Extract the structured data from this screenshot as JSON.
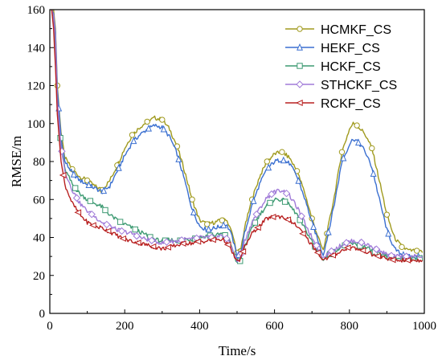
{
  "chart_data": {
    "type": "line",
    "title": "",
    "xlabel": "Time/s",
    "ylabel": "RMSE/m",
    "xlim": [
      0,
      1000
    ],
    "ylim": [
      0,
      160
    ],
    "xticks": [
      0,
      200,
      400,
      600,
      800,
      1000
    ],
    "yticks": [
      0,
      20,
      40,
      60,
      80,
      100,
      120,
      140,
      160
    ],
    "grid": false,
    "legend_position": "top-right",
    "series": [
      {
        "name": "HCMKF_CS",
        "color": "#a09a1e",
        "marker": "circle",
        "points": [
          [
            5,
            160
          ],
          [
            10,
            160
          ],
          [
            15,
            150
          ],
          [
            20,
            120
          ],
          [
            30,
            95
          ],
          [
            40,
            82
          ],
          [
            60,
            76
          ],
          [
            80,
            72
          ],
          [
            100,
            70
          ],
          [
            120,
            67
          ],
          [
            140,
            65
          ],
          [
            160,
            70
          ],
          [
            180,
            78
          ],
          [
            200,
            87
          ],
          [
            220,
            94
          ],
          [
            240,
            98
          ],
          [
            260,
            101
          ],
          [
            280,
            103
          ],
          [
            300,
            102
          ],
          [
            320,
            97
          ],
          [
            340,
            88
          ],
          [
            360,
            75
          ],
          [
            380,
            60
          ],
          [
            400,
            49
          ],
          [
            420,
            47
          ],
          [
            440,
            48
          ],
          [
            460,
            49
          ],
          [
            470,
            50
          ],
          [
            480,
            46
          ],
          [
            490,
            40
          ],
          [
            500,
            32
          ],
          [
            510,
            34
          ],
          [
            520,
            45
          ],
          [
            540,
            60
          ],
          [
            560,
            72
          ],
          [
            580,
            80
          ],
          [
            600,
            84
          ],
          [
            620,
            85
          ],
          [
            640,
            82
          ],
          [
            660,
            75
          ],
          [
            680,
            64
          ],
          [
            700,
            50
          ],
          [
            720,
            38
          ],
          [
            730,
            33
          ],
          [
            740,
            42
          ],
          [
            760,
            62
          ],
          [
            780,
            85
          ],
          [
            800,
            97
          ],
          [
            810,
            100
          ],
          [
            820,
            99
          ],
          [
            840,
            95
          ],
          [
            860,
            87
          ],
          [
            880,
            70
          ],
          [
            900,
            52
          ],
          [
            920,
            40
          ],
          [
            940,
            35
          ],
          [
            960,
            33
          ],
          [
            980,
            33
          ],
          [
            995,
            32
          ]
        ]
      },
      {
        "name": "HEKF_CS",
        "color": "#3a6fd0",
        "marker": "triangle",
        "points": [
          [
            5,
            160
          ],
          [
            10,
            158
          ],
          [
            15,
            148
          ],
          [
            20,
            118
          ],
          [
            30,
            93
          ],
          [
            40,
            80
          ],
          [
            60,
            74
          ],
          [
            80,
            70
          ],
          [
            100,
            68
          ],
          [
            120,
            66
          ],
          [
            140,
            64
          ],
          [
            160,
            67
          ],
          [
            180,
            75
          ],
          [
            200,
            83
          ],
          [
            220,
            90
          ],
          [
            240,
            94
          ],
          [
            260,
            97
          ],
          [
            280,
            99
          ],
          [
            300,
            98
          ],
          [
            320,
            93
          ],
          [
            340,
            84
          ],
          [
            360,
            70
          ],
          [
            380,
            55
          ],
          [
            400,
            46
          ],
          [
            420,
            44
          ],
          [
            440,
            45
          ],
          [
            460,
            46
          ],
          [
            470,
            47
          ],
          [
            480,
            44
          ],
          [
            490,
            38
          ],
          [
            500,
            30
          ],
          [
            510,
            32
          ],
          [
            520,
            42
          ],
          [
            540,
            57
          ],
          [
            560,
            68
          ],
          [
            580,
            76
          ],
          [
            600,
            80
          ],
          [
            620,
            81
          ],
          [
            640,
            79
          ],
          [
            660,
            72
          ],
          [
            680,
            61
          ],
          [
            700,
            48
          ],
          [
            720,
            36
          ],
          [
            730,
            31
          ],
          [
            740,
            39
          ],
          [
            760,
            58
          ],
          [
            780,
            80
          ],
          [
            800,
            89
          ],
          [
            810,
            92
          ],
          [
            820,
            91
          ],
          [
            840,
            86
          ],
          [
            860,
            77
          ],
          [
            880,
            60
          ],
          [
            900,
            44
          ],
          [
            920,
            34
          ],
          [
            940,
            31
          ],
          [
            960,
            30
          ],
          [
            980,
            30
          ],
          [
            995,
            30
          ]
        ]
      },
      {
        "name": "HCKF_CS",
        "color": "#3d9a72",
        "marker": "square",
        "points": [
          [
            5,
            160
          ],
          [
            10,
            156
          ],
          [
            15,
            140
          ],
          [
            20,
            110
          ],
          [
            30,
            88
          ],
          [
            40,
            76
          ],
          [
            60,
            68
          ],
          [
            80,
            63
          ],
          [
            100,
            60
          ],
          [
            120,
            58
          ],
          [
            140,
            56
          ],
          [
            160,
            52
          ],
          [
            180,
            49
          ],
          [
            200,
            47
          ],
          [
            220,
            45
          ],
          [
            240,
            43
          ],
          [
            260,
            41
          ],
          [
            280,
            39
          ],
          [
            300,
            38
          ],
          [
            320,
            39
          ],
          [
            340,
            38
          ],
          [
            360,
            39
          ],
          [
            380,
            39
          ],
          [
            400,
            40
          ],
          [
            420,
            41
          ],
          [
            440,
            41
          ],
          [
            460,
            42
          ],
          [
            470,
            41
          ],
          [
            480,
            38
          ],
          [
            490,
            33
          ],
          [
            500,
            26
          ],
          [
            510,
            28
          ],
          [
            520,
            35
          ],
          [
            540,
            45
          ],
          [
            560,
            52
          ],
          [
            580,
            57
          ],
          [
            600,
            60
          ],
          [
            620,
            60
          ],
          [
            640,
            57
          ],
          [
            660,
            52
          ],
          [
            680,
            45
          ],
          [
            700,
            38
          ],
          [
            720,
            31
          ],
          [
            730,
            28
          ],
          [
            740,
            30
          ],
          [
            760,
            33
          ],
          [
            780,
            35
          ],
          [
            800,
            37
          ],
          [
            820,
            36
          ],
          [
            840,
            35
          ],
          [
            860,
            33
          ],
          [
            880,
            31
          ],
          [
            900,
            30
          ],
          [
            920,
            29
          ],
          [
            940,
            29
          ],
          [
            960,
            29
          ],
          [
            980,
            29
          ],
          [
            995,
            29
          ]
        ]
      },
      {
        "name": "STHCKF_CS",
        "color": "#a07ad8",
        "marker": "diamond",
        "points": [
          [
            5,
            160
          ],
          [
            10,
            157
          ],
          [
            15,
            145
          ],
          [
            20,
            112
          ],
          [
            30,
            88
          ],
          [
            40,
            75
          ],
          [
            60,
            65
          ],
          [
            80,
            58
          ],
          [
            100,
            54
          ],
          [
            120,
            51
          ],
          [
            140,
            48
          ],
          [
            160,
            46
          ],
          [
            180,
            44
          ],
          [
            200,
            43
          ],
          [
            220,
            42
          ],
          [
            240,
            40
          ],
          [
            260,
            39
          ],
          [
            280,
            38
          ],
          [
            300,
            37
          ],
          [
            320,
            38
          ],
          [
            340,
            38
          ],
          [
            360,
            39
          ],
          [
            380,
            39
          ],
          [
            400,
            40
          ],
          [
            420,
            40
          ],
          [
            440,
            40
          ],
          [
            460,
            41
          ],
          [
            470,
            40
          ],
          [
            480,
            37
          ],
          [
            490,
            33
          ],
          [
            500,
            27
          ],
          [
            510,
            30
          ],
          [
            520,
            38
          ],
          [
            540,
            48
          ],
          [
            560,
            55
          ],
          [
            580,
            61
          ],
          [
            600,
            64
          ],
          [
            620,
            65
          ],
          [
            640,
            62
          ],
          [
            660,
            56
          ],
          [
            680,
            48
          ],
          [
            700,
            40
          ],
          [
            720,
            33
          ],
          [
            730,
            29
          ],
          [
            740,
            31
          ],
          [
            760,
            34
          ],
          [
            780,
            36
          ],
          [
            800,
            38
          ],
          [
            820,
            38
          ],
          [
            840,
            37
          ],
          [
            860,
            35
          ],
          [
            880,
            33
          ],
          [
            900,
            31
          ],
          [
            920,
            30
          ],
          [
            940,
            30
          ],
          [
            960,
            30
          ],
          [
            980,
            30
          ],
          [
            995,
            30
          ]
        ]
      },
      {
        "name": "RCKF_CS",
        "color": "#b82020",
        "marker": "triangle-left",
        "points": [
          [
            5,
            160
          ],
          [
            10,
            150
          ],
          [
            15,
            130
          ],
          [
            20,
            105
          ],
          [
            30,
            80
          ],
          [
            40,
            68
          ],
          [
            60,
            58
          ],
          [
            80,
            52
          ],
          [
            100,
            48
          ],
          [
            120,
            46
          ],
          [
            140,
            45
          ],
          [
            160,
            43
          ],
          [
            180,
            41
          ],
          [
            200,
            39
          ],
          [
            220,
            38
          ],
          [
            240,
            37
          ],
          [
            260,
            36
          ],
          [
            280,
            35
          ],
          [
            300,
            34
          ],
          [
            320,
            35
          ],
          [
            340,
            36
          ],
          [
            360,
            37
          ],
          [
            380,
            37
          ],
          [
            400,
            38
          ],
          [
            420,
            38
          ],
          [
            440,
            39
          ],
          [
            460,
            39
          ],
          [
            470,
            38
          ],
          [
            480,
            35
          ],
          [
            490,
            31
          ],
          [
            500,
            27
          ],
          [
            510,
            29
          ],
          [
            520,
            35
          ],
          [
            540,
            42
          ],
          [
            560,
            46
          ],
          [
            580,
            50
          ],
          [
            600,
            51
          ],
          [
            620,
            51
          ],
          [
            640,
            49
          ],
          [
            660,
            46
          ],
          [
            680,
            41
          ],
          [
            700,
            36
          ],
          [
            720,
            31
          ],
          [
            730,
            28
          ],
          [
            740,
            29
          ],
          [
            760,
            31
          ],
          [
            780,
            33
          ],
          [
            800,
            35
          ],
          [
            820,
            34
          ],
          [
            840,
            33
          ],
          [
            860,
            31
          ],
          [
            880,
            30
          ],
          [
            900,
            29
          ],
          [
            920,
            28
          ],
          [
            940,
            28
          ],
          [
            960,
            28
          ],
          [
            980,
            28
          ],
          [
            995,
            28
          ]
        ]
      }
    ]
  }
}
